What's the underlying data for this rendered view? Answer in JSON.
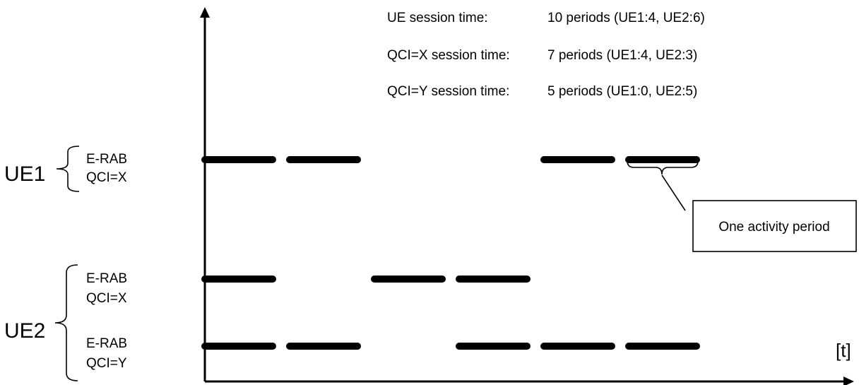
{
  "summary": {
    "ue_session": {
      "label": "UE session time:",
      "value": "10 periods (UE1:4, UE2:6)"
    },
    "qci_x_session": {
      "label": "QCI=X session time:",
      "value": "7 periods (UE1:4, UE2:3)"
    },
    "qci_y_session": {
      "label": "QCI=Y session time:",
      "value": "5 periods (UE1:0, UE2:5)"
    }
  },
  "axis": {
    "time_label": "[t]"
  },
  "ues": [
    {
      "name": "UE1",
      "bearers": [
        {
          "line1": "E-RAB",
          "line2": "QCI=X",
          "active_periods": [
            1,
            2,
            5,
            6
          ]
        }
      ]
    },
    {
      "name": "UE2",
      "bearers": [
        {
          "line1": "E-RAB",
          "line2": "QCI=X",
          "active_periods": [
            1,
            3,
            4
          ]
        },
        {
          "line1": "E-RAB",
          "line2": "QCI=Y",
          "active_periods": [
            1,
            2,
            4,
            5,
            6
          ]
        }
      ]
    }
  ],
  "callout": {
    "label": "One activity period"
  },
  "colors": {
    "ink": "#000000",
    "background": "#ffffff"
  }
}
